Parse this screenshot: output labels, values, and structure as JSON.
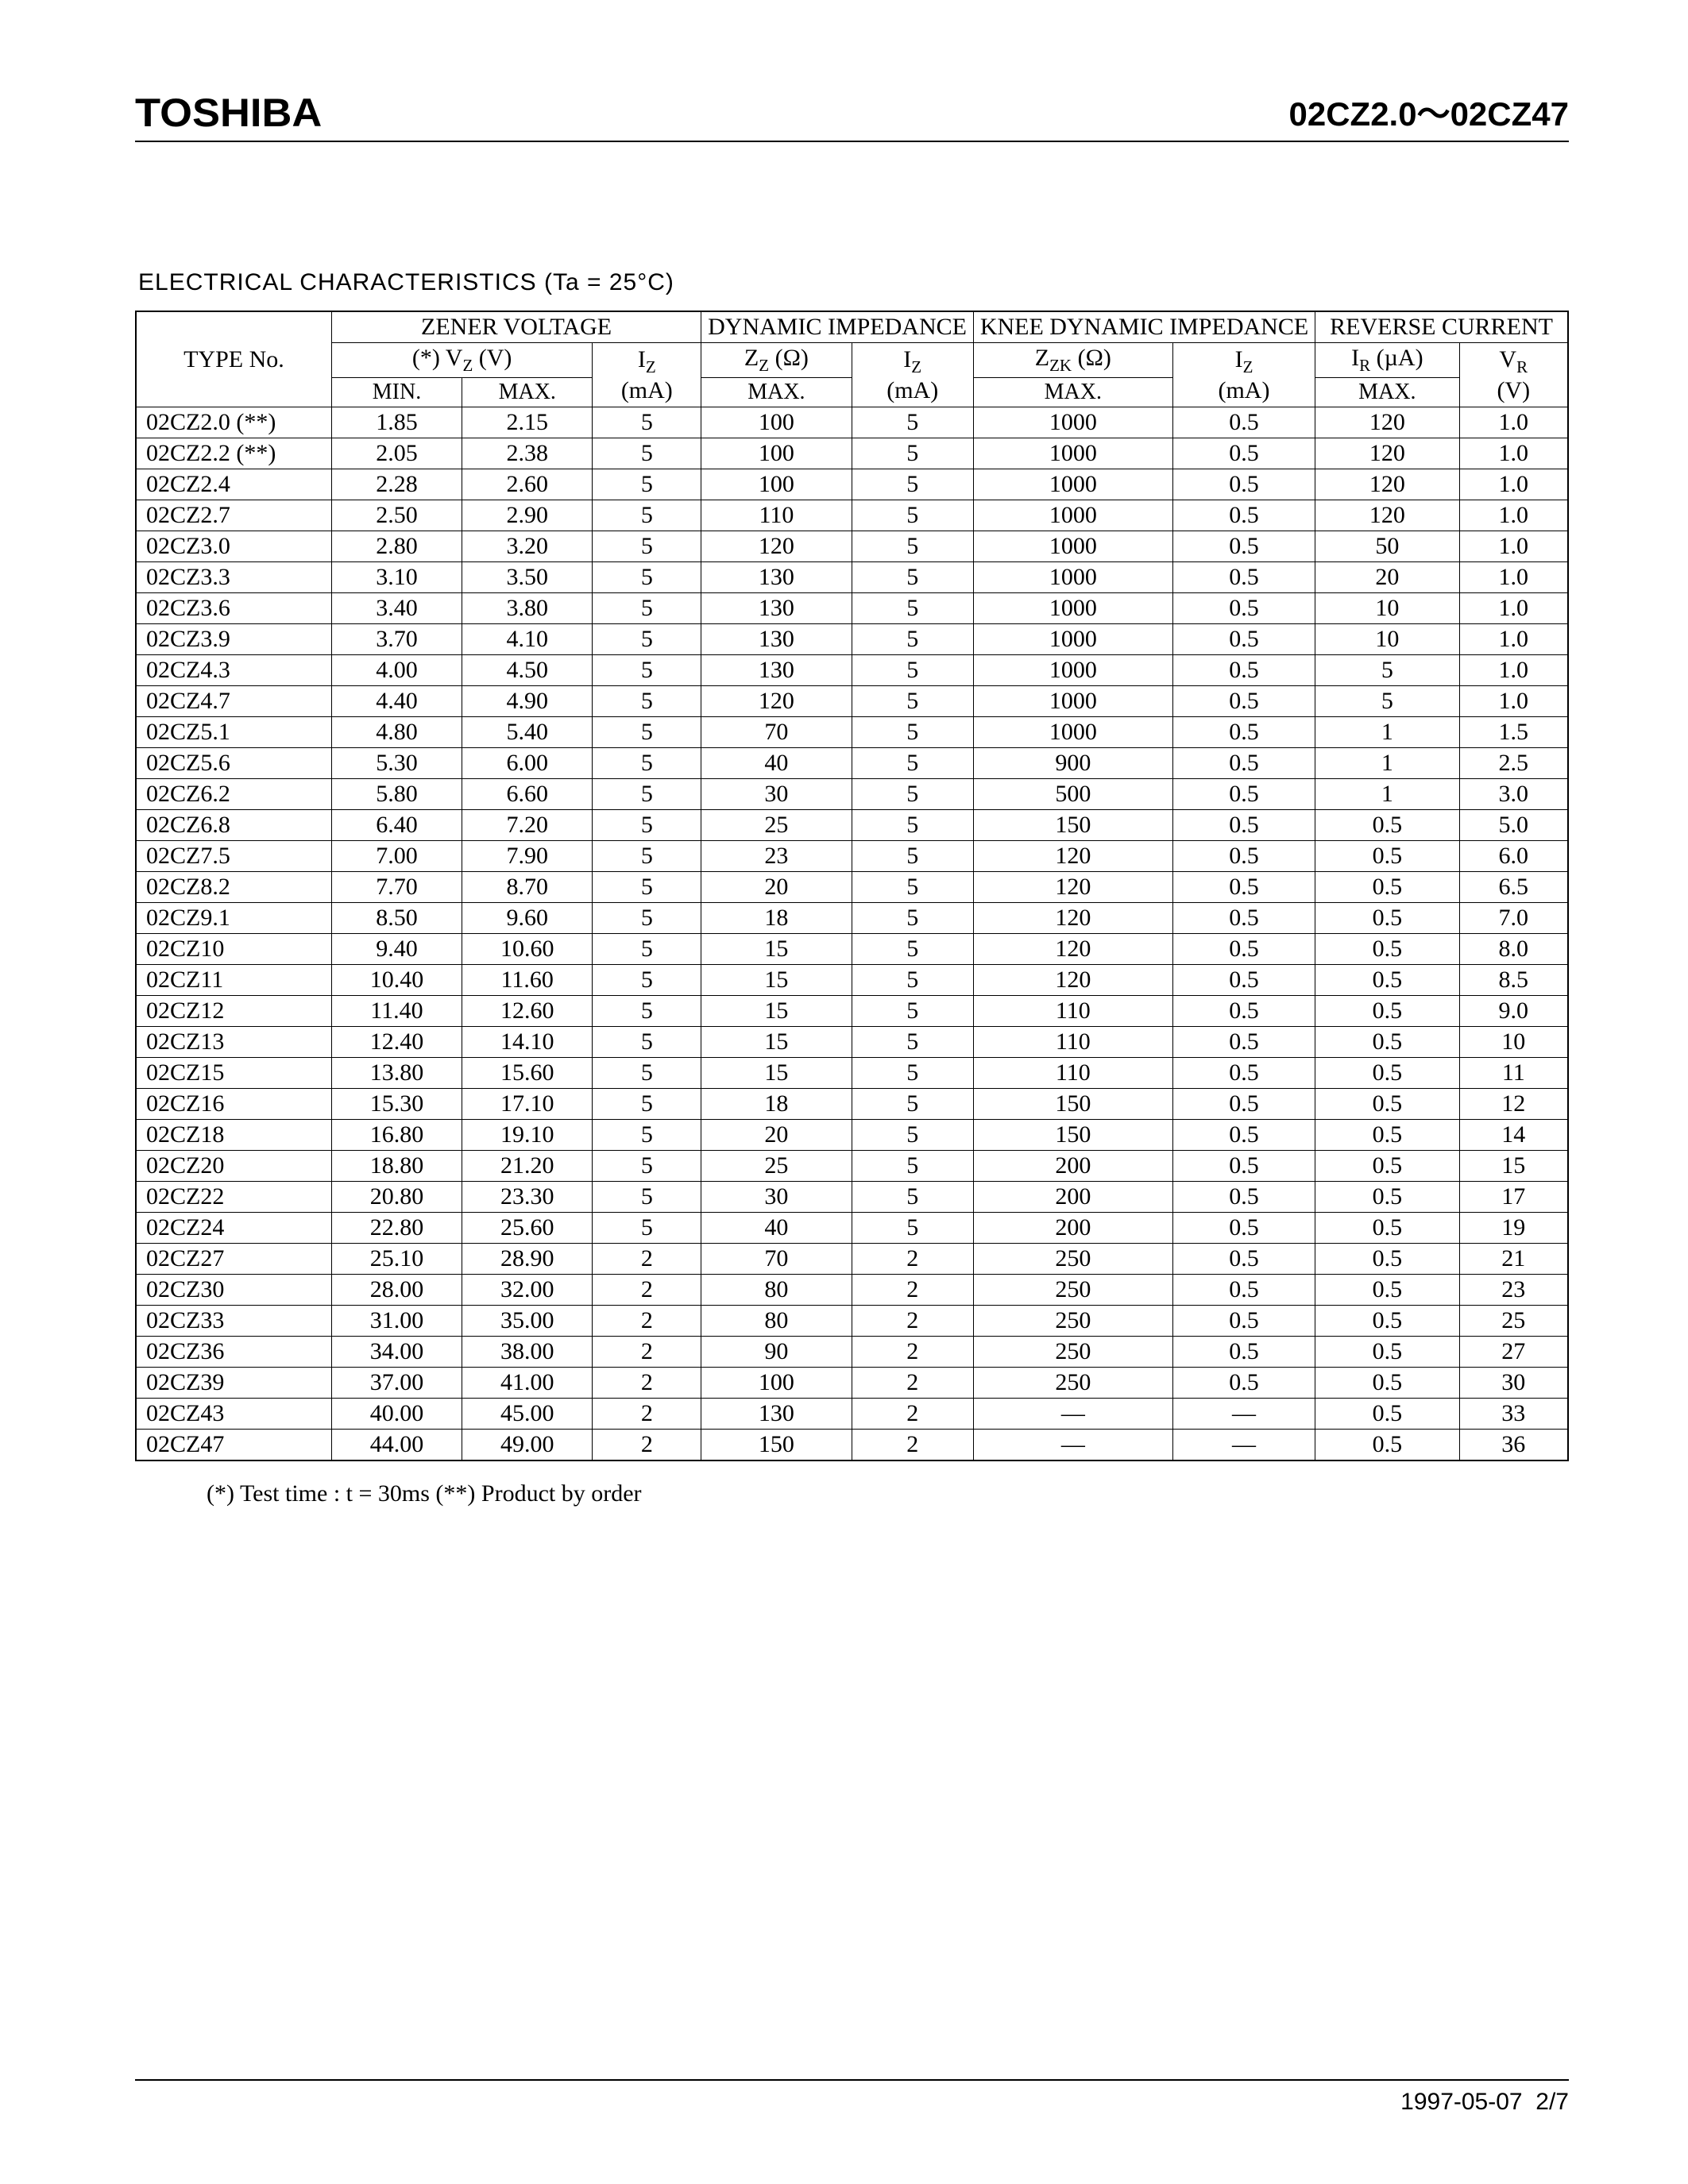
{
  "header": {
    "brand": "TOSHIBA",
    "part_range": "02CZ2.0～02CZ47"
  },
  "section_title": "ELECTRICAL CHARACTERISTICS (Ta = 25°C)",
  "colors": {
    "text": "#000000",
    "background": "#ffffff",
    "border": "#000000"
  },
  "typography": {
    "body_font": "Times New Roman",
    "header_font": "Arial",
    "body_fontsize_pt": 30,
    "brand_fontsize_pt": 50,
    "partrange_fontsize_pt": 42,
    "section_fontsize_pt": 30
  },
  "table": {
    "type": "table",
    "column_widths_pct": [
      13.5,
      9,
      9,
      7.5,
      9.5,
      7.5,
      10.5,
      7.5,
      9.5,
      7.5
    ],
    "group_headers": {
      "type_no": "TYPE No.",
      "zener": "ZENER VOLTAGE",
      "dynamic": "DYNAMIC IMPEDANCE",
      "knee": "KNEE DYNAMIC IMPEDANCE",
      "reverse": "REVERSE CURRENT"
    },
    "sub_headers": {
      "vz": "(*) V_Z (V)",
      "iz_ma": "I_Z (mA)",
      "zz_ohm": "Z_Z (Ω)",
      "zzk_ohm": "Z_ZK (Ω)",
      "ir_ua": "I_R (µA)",
      "vr_v": "V_R (V)",
      "min": "MIN.",
      "max": "MAX."
    },
    "columns": [
      "TYPE No.",
      "V_Z MIN.",
      "V_Z MAX.",
      "I_Z (mA)",
      "Z_Z MAX.",
      "I_Z (mA)",
      "Z_ZK MAX.",
      "I_Z (mA)",
      "I_R MAX.",
      "V_R (V)"
    ],
    "rows": [
      [
        "02CZ2.0 (**)",
        "1.85",
        "2.15",
        "5",
        "100",
        "5",
        "1000",
        "0.5",
        "120",
        "1.0"
      ],
      [
        "02CZ2.2 (**)",
        "2.05",
        "2.38",
        "5",
        "100",
        "5",
        "1000",
        "0.5",
        "120",
        "1.0"
      ],
      [
        "02CZ2.4",
        "2.28",
        "2.60",
        "5",
        "100",
        "5",
        "1000",
        "0.5",
        "120",
        "1.0"
      ],
      [
        "02CZ2.7",
        "2.50",
        "2.90",
        "5",
        "110",
        "5",
        "1000",
        "0.5",
        "120",
        "1.0"
      ],
      [
        "02CZ3.0",
        "2.80",
        "3.20",
        "5",
        "120",
        "5",
        "1000",
        "0.5",
        "50",
        "1.0"
      ],
      [
        "02CZ3.3",
        "3.10",
        "3.50",
        "5",
        "130",
        "5",
        "1000",
        "0.5",
        "20",
        "1.0"
      ],
      [
        "02CZ3.6",
        "3.40",
        "3.80",
        "5",
        "130",
        "5",
        "1000",
        "0.5",
        "10",
        "1.0"
      ],
      [
        "02CZ3.9",
        "3.70",
        "4.10",
        "5",
        "130",
        "5",
        "1000",
        "0.5",
        "10",
        "1.0"
      ],
      [
        "02CZ4.3",
        "4.00",
        "4.50",
        "5",
        "130",
        "5",
        "1000",
        "0.5",
        "5",
        "1.0"
      ],
      [
        "02CZ4.7",
        "4.40",
        "4.90",
        "5",
        "120",
        "5",
        "1000",
        "0.5",
        "5",
        "1.0"
      ],
      [
        "02CZ5.1",
        "4.80",
        "5.40",
        "5",
        "70",
        "5",
        "1000",
        "0.5",
        "1",
        "1.5"
      ],
      [
        "02CZ5.6",
        "5.30",
        "6.00",
        "5",
        "40",
        "5",
        "900",
        "0.5",
        "1",
        "2.5"
      ],
      [
        "02CZ6.2",
        "5.80",
        "6.60",
        "5",
        "30",
        "5",
        "500",
        "0.5",
        "1",
        "3.0"
      ],
      [
        "02CZ6.8",
        "6.40",
        "7.20",
        "5",
        "25",
        "5",
        "150",
        "0.5",
        "0.5",
        "5.0"
      ],
      [
        "02CZ7.5",
        "7.00",
        "7.90",
        "5",
        "23",
        "5",
        "120",
        "0.5",
        "0.5",
        "6.0"
      ],
      [
        "02CZ8.2",
        "7.70",
        "8.70",
        "5",
        "20",
        "5",
        "120",
        "0.5",
        "0.5",
        "6.5"
      ],
      [
        "02CZ9.1",
        "8.50",
        "9.60",
        "5",
        "18",
        "5",
        "120",
        "0.5",
        "0.5",
        "7.0"
      ],
      [
        "02CZ10",
        "9.40",
        "10.60",
        "5",
        "15",
        "5",
        "120",
        "0.5",
        "0.5",
        "8.0"
      ],
      [
        "02CZ11",
        "10.40",
        "11.60",
        "5",
        "15",
        "5",
        "120",
        "0.5",
        "0.5",
        "8.5"
      ],
      [
        "02CZ12",
        "11.40",
        "12.60",
        "5",
        "15",
        "5",
        "110",
        "0.5",
        "0.5",
        "9.0"
      ],
      [
        "02CZ13",
        "12.40",
        "14.10",
        "5",
        "15",
        "5",
        "110",
        "0.5",
        "0.5",
        "10"
      ],
      [
        "02CZ15",
        "13.80",
        "15.60",
        "5",
        "15",
        "5",
        "110",
        "0.5",
        "0.5",
        "11"
      ],
      [
        "02CZ16",
        "15.30",
        "17.10",
        "5",
        "18",
        "5",
        "150",
        "0.5",
        "0.5",
        "12"
      ],
      [
        "02CZ18",
        "16.80",
        "19.10",
        "5",
        "20",
        "5",
        "150",
        "0.5",
        "0.5",
        "14"
      ],
      [
        "02CZ20",
        "18.80",
        "21.20",
        "5",
        "25",
        "5",
        "200",
        "0.5",
        "0.5",
        "15"
      ],
      [
        "02CZ22",
        "20.80",
        "23.30",
        "5",
        "30",
        "5",
        "200",
        "0.5",
        "0.5",
        "17"
      ],
      [
        "02CZ24",
        "22.80",
        "25.60",
        "5",
        "40",
        "5",
        "200",
        "0.5",
        "0.5",
        "19"
      ],
      [
        "02CZ27",
        "25.10",
        "28.90",
        "2",
        "70",
        "2",
        "250",
        "0.5",
        "0.5",
        "21"
      ],
      [
        "02CZ30",
        "28.00",
        "32.00",
        "2",
        "80",
        "2",
        "250",
        "0.5",
        "0.5",
        "23"
      ],
      [
        "02CZ33",
        "31.00",
        "35.00",
        "2",
        "80",
        "2",
        "250",
        "0.5",
        "0.5",
        "25"
      ],
      [
        "02CZ36",
        "34.00",
        "38.00",
        "2",
        "90",
        "2",
        "250",
        "0.5",
        "0.5",
        "27"
      ],
      [
        "02CZ39",
        "37.00",
        "41.00",
        "2",
        "100",
        "2",
        "250",
        "0.5",
        "0.5",
        "30"
      ],
      [
        "02CZ43",
        "40.00",
        "45.00",
        "2",
        "130",
        "2",
        "—",
        "—",
        "0.5",
        "33"
      ],
      [
        "02CZ47",
        "44.00",
        "49.00",
        "2",
        "150",
        "2",
        "—",
        "—",
        "0.5",
        "36"
      ]
    ]
  },
  "footnote": "(*)  Test time : t = 30ms      (**)    Product by order",
  "footer": {
    "date": "1997-05-07",
    "page": "2/7"
  }
}
